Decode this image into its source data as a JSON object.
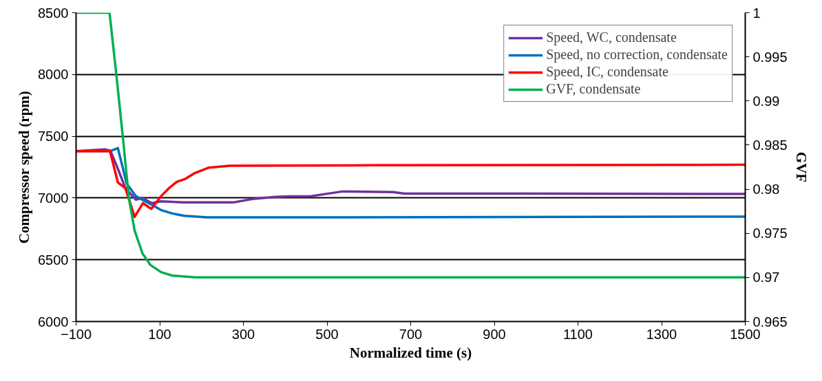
{
  "chart_data": {
    "type": "line",
    "xlabel": "Normalized time (s)",
    "ylabel": "Compressor speed (rpm)",
    "y2label": "GVF",
    "xlim": [
      -100,
      1500
    ],
    "xticks": [
      -100,
      100,
      300,
      500,
      700,
      900,
      1100,
      1300,
      1500
    ],
    "ylim": [
      6000,
      8500
    ],
    "yticks": [
      6000,
      6500,
      7000,
      7500,
      8000,
      8500
    ],
    "y2lim": [
      0.965,
      1
    ],
    "y2ticks": [
      0.965,
      0.97,
      0.975,
      0.98,
      0.985,
      0.99,
      0.995,
      1
    ],
    "grid": "y",
    "legend": "top right",
    "marker": "none",
    "line_style": "solid",
    "series": [
      {
        "name": "Speed, WC, condensate",
        "color": "#7030a0",
        "x": [
          -100,
          -31,
          -18,
          1,
          18,
          43,
          59,
          81,
          103,
          158,
          213,
          276,
          322,
          377,
          410,
          460,
          537,
          657,
          685,
          728,
          1500
        ],
        "values": [
          7380,
          7394,
          7382,
          7228,
          7079,
          6986,
          7001,
          6958,
          6973,
          6964,
          6964,
          6964,
          6992,
          7009,
          7014,
          7014,
          7053,
          7048,
          7036,
          7036,
          7033
        ]
      },
      {
        "name": "Speed, no correction, condensate",
        "color": "#0070c0",
        "x": [
          -100,
          -18,
          0,
          21,
          43,
          81,
          103,
          130,
          158,
          213,
          377,
          1500
        ],
        "values": [
          7380,
          7380,
          7404,
          7116,
          7014,
          6945,
          6903,
          6875,
          6856,
          6843,
          6843,
          6849
        ]
      },
      {
        "name": "Speed, IC, condensate",
        "color": "#ff0000",
        "x": [
          -100,
          -19,
          0,
          18,
          40,
          60,
          80,
          103,
          122,
          141,
          160,
          183,
          218,
          268,
          600,
          1500
        ],
        "values": [
          7380,
          7380,
          7125,
          7079,
          6847,
          6958,
          6912,
          7014,
          7079,
          7131,
          7153,
          7200,
          7246,
          7261,
          7265,
          7269
        ]
      },
      {
        "name": "GVF, condensate",
        "color": "#00b050",
        "axis": "y2",
        "x": [
          -100,
          -20,
          -4,
          12.5,
          26,
          40,
          59,
          78,
          103,
          130,
          185,
          1500
        ],
        "values": [
          1,
          1,
          0.9931,
          0.9856,
          0.9791,
          0.9753,
          0.9727,
          0.9714,
          0.9706,
          0.9702,
          0.97,
          0.97
        ]
      }
    ]
  }
}
